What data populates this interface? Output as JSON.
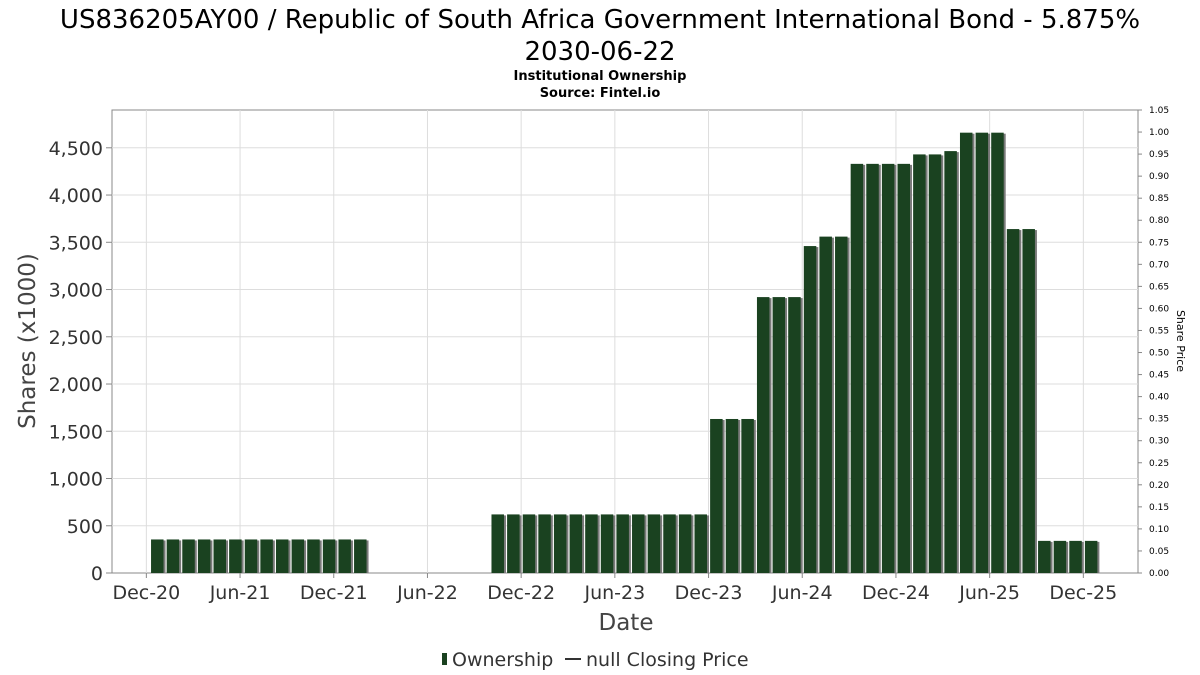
{
  "chart_data": {
    "type": "bar",
    "title_line1": "US836205AY00 / Republic of South Africa Government International Bond - 5.875%",
    "title_line2": "2030-06-22",
    "subtitle_line1": "Institutional Ownership",
    "subtitle_line2": "Source: Fintel.io",
    "xlabel": "Date",
    "ylabel": "Shares (x1000)",
    "y2label": "Share Price",
    "ylim": [
      0,
      4900
    ],
    "y2lim": [
      0,
      1.05
    ],
    "y_ticks": [
      0,
      500,
      1000,
      1500,
      2000,
      2500,
      3000,
      3500,
      4000,
      4500
    ],
    "y_tick_labels": [
      "0",
      "500",
      "1,000",
      "1,500",
      "2,000",
      "2,500",
      "3,000",
      "3,500",
      "4,000",
      "4,500"
    ],
    "y2_ticks": [
      0,
      0.05,
      0.1,
      0.15,
      0.2,
      0.25,
      0.3,
      0.35,
      0.4,
      0.45,
      0.5,
      0.55,
      0.6,
      0.65,
      0.7,
      0.75,
      0.8,
      0.85,
      0.9,
      0.95,
      1.0,
      1.05
    ],
    "y2_tick_labels": [
      "0.00",
      "0.05",
      "0.10",
      "0.15",
      "0.20",
      "0.25",
      "0.30",
      "0.35",
      "0.40",
      "0.45",
      "0.50",
      "0.55",
      "0.60",
      "0.65",
      "0.70",
      "0.75",
      "0.80",
      "0.85",
      "0.90",
      "0.95",
      "1.00",
      "1.05"
    ],
    "x_ticks": [
      "Dec-20",
      "Jun-21",
      "Dec-21",
      "Jun-22",
      "Dec-22",
      "Jun-23",
      "Dec-23",
      "Jun-24",
      "Dec-24",
      "Jun-25",
      "Dec-25"
    ],
    "x_tick_month_index": [
      0,
      6,
      12,
      18,
      24,
      30,
      36,
      42,
      48,
      54,
      60
    ],
    "x_range_months": [
      -2.2,
      63.5
    ],
    "series": [
      {
        "name": "Ownership",
        "color": "#1a4220",
        "shadow_color": "#7a7a7a",
        "bars": [
          {
            "m": 0.7,
            "v": 355
          },
          {
            "m": 1.7,
            "v": 355
          },
          {
            "m": 2.7,
            "v": 355
          },
          {
            "m": 3.7,
            "v": 355
          },
          {
            "m": 4.7,
            "v": 355
          },
          {
            "m": 5.7,
            "v": 355
          },
          {
            "m": 6.7,
            "v": 355
          },
          {
            "m": 7.7,
            "v": 355
          },
          {
            "m": 8.7,
            "v": 355
          },
          {
            "m": 9.7,
            "v": 355
          },
          {
            "m": 10.7,
            "v": 355
          },
          {
            "m": 11.7,
            "v": 355
          },
          {
            "m": 12.7,
            "v": 355
          },
          {
            "m": 13.7,
            "v": 355
          },
          {
            "m": 22.5,
            "v": 620
          },
          {
            "m": 23.5,
            "v": 620
          },
          {
            "m": 24.5,
            "v": 620
          },
          {
            "m": 25.5,
            "v": 620
          },
          {
            "m": 26.5,
            "v": 620
          },
          {
            "m": 27.5,
            "v": 620
          },
          {
            "m": 28.5,
            "v": 620
          },
          {
            "m": 29.5,
            "v": 620
          },
          {
            "m": 30.5,
            "v": 620
          },
          {
            "m": 31.5,
            "v": 620
          },
          {
            "m": 32.5,
            "v": 620
          },
          {
            "m": 33.5,
            "v": 620
          },
          {
            "m": 34.5,
            "v": 620
          },
          {
            "m": 35.5,
            "v": 620
          },
          {
            "m": 36.5,
            "v": 1630
          },
          {
            "m": 37.5,
            "v": 1630
          },
          {
            "m": 38.5,
            "v": 1630
          },
          {
            "m": 39.5,
            "v": 2920
          },
          {
            "m": 40.5,
            "v": 2920
          },
          {
            "m": 41.5,
            "v": 2920
          },
          {
            "m": 42.5,
            "v": 3460
          },
          {
            "m": 43.5,
            "v": 3560
          },
          {
            "m": 44.5,
            "v": 3560
          },
          {
            "m": 45.5,
            "v": 4330
          },
          {
            "m": 46.5,
            "v": 4330
          },
          {
            "m": 47.5,
            "v": 4330
          },
          {
            "m": 48.5,
            "v": 4330
          },
          {
            "m": 49.5,
            "v": 4430
          },
          {
            "m": 50.5,
            "v": 4430
          },
          {
            "m": 51.5,
            "v": 4465
          },
          {
            "m": 52.5,
            "v": 4660
          },
          {
            "m": 53.5,
            "v": 4660
          },
          {
            "m": 54.5,
            "v": 4660
          },
          {
            "m": 55.5,
            "v": 3640
          },
          {
            "m": 56.5,
            "v": 3640
          },
          {
            "m": 57.5,
            "v": 340
          },
          {
            "m": 58.5,
            "v": 340
          },
          {
            "m": 59.5,
            "v": 340
          },
          {
            "m": 60.5,
            "v": 340
          }
        ]
      },
      {
        "name": "null Closing Price",
        "type": "line",
        "color": "#333333",
        "values": []
      }
    ],
    "legend": {
      "position": "bottom-center",
      "ownership_label": "Ownership",
      "price_label": "null Closing Price"
    },
    "grid": true
  }
}
